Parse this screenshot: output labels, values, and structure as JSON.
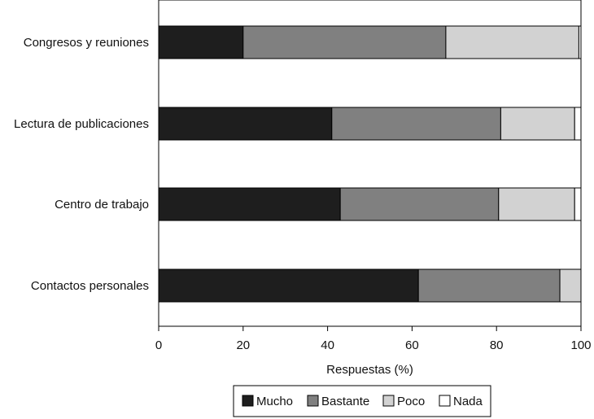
{
  "chart_data": {
    "type": "bar",
    "orientation": "horizontal",
    "stacked": true,
    "categories": [
      "Congresos y reuniones",
      "Lectura de publicaciones",
      "Centro de trabajo",
      "Contactos personales"
    ],
    "series": [
      {
        "name": "Mucho",
        "color": "#1e1e1e",
        "values": [
          20,
          41,
          43,
          61.5
        ]
      },
      {
        "name": "Bastante",
        "color": "#808080",
        "values": [
          48,
          40,
          37.5,
          33.5
        ]
      },
      {
        "name": "Poco",
        "color": "#d2d2d2",
        "values": [
          31.5,
          17.5,
          18,
          5
        ]
      },
      {
        "name": "Nada",
        "color": "#ffffff",
        "values": [
          0.5,
          1.5,
          1.5,
          0
        ]
      }
    ],
    "xlim": [
      0,
      100
    ],
    "xticks": [
      0,
      20,
      40,
      60,
      80,
      100
    ],
    "xlabel": "Respuestas (%)",
    "ylabel": "",
    "title": "",
    "legend_position": "bottom",
    "grid": false
  }
}
